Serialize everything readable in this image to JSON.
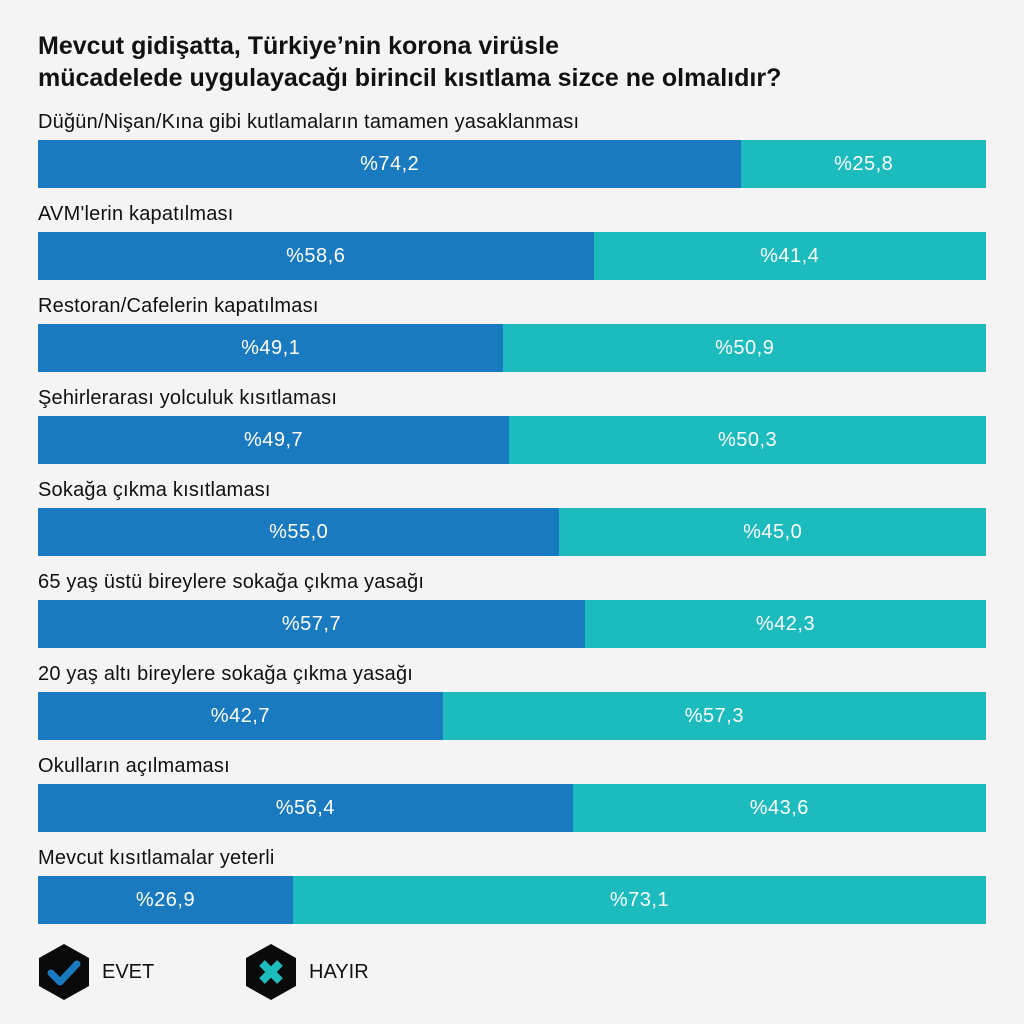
{
  "chart_data": {
    "type": "bar",
    "stacked": true,
    "orientation": "horizontal",
    "title_lines": [
      "Mevcut gidişatta, Türkiye’nin korona virüsle",
      "mücadelede uygulayacağı birincil kısıtlama sizce ne olmalıdır?"
    ],
    "categories": [
      "Düğün/Nişan/Kına gibi kutlamaların tamamen yasaklanması",
      "AVM'lerin kapatılması",
      "Restoran/Cafelerin kapatılması",
      "Şehirlerarası yolculuk kısıtlaması",
      "Sokağa çıkma kısıtlaması",
      "65 yaş üstü bireylere sokağa çıkma yasağı",
      "20 yaş altı bireylere sokağa çıkma yasağı",
      "Okulların açılmaması",
      "Mevcut kısıtlamalar yeterli"
    ],
    "series": [
      {
        "name": "EVET",
        "color": "#1a7abf",
        "values": [
          74.2,
          58.6,
          49.1,
          49.7,
          55.0,
          57.7,
          42.7,
          56.4,
          26.9
        ],
        "labels": [
          "%74,2",
          "%58,6",
          "%49,1",
          "%49,7",
          "%55,0",
          "%57,7",
          "%42,7",
          "%56,4",
          "%26,9"
        ]
      },
      {
        "name": "HAYIR",
        "color": "#1cbcbe",
        "values": [
          25.8,
          41.4,
          50.9,
          50.3,
          45.0,
          42.3,
          57.3,
          43.6,
          73.1
        ],
        "labels": [
          "%25,8",
          "%41,4",
          "%50,9",
          "%50,3",
          "%45,0",
          "%42,3",
          "%57,3",
          "%43,6",
          "%73,1"
        ]
      }
    ],
    "xlim": [
      0,
      100
    ],
    "legend": "bottom-left",
    "legend_icons": [
      "check-icon",
      "x-icon"
    ]
  }
}
